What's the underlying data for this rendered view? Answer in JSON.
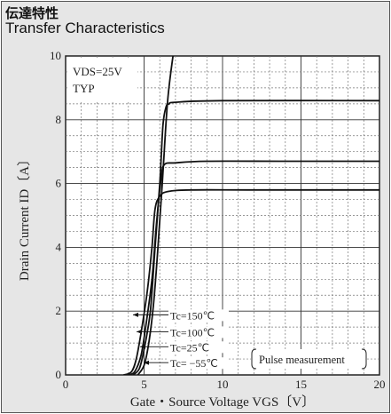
{
  "header": {
    "title_jp": "伝達特性",
    "title_en": "Transfer Characteristics"
  },
  "chart_data": {
    "type": "line",
    "title": "Transfer Characteristics",
    "xlabel": "Gate・Source Voltage  VGS〔V〕",
    "ylabel": "Drain Current  ID〔A〕",
    "xlim": [
      0,
      20
    ],
    "ylim": [
      0,
      10
    ],
    "x_ticks": [
      0,
      5,
      10,
      15,
      20
    ],
    "y_ticks": [
      0,
      2,
      4,
      6,
      8,
      10
    ],
    "grid": true,
    "conditions": [
      "VDS=25V",
      "TYP"
    ],
    "note": "Pulse measurement",
    "series": [
      {
        "name": "Tc=150℃",
        "x": [
          3.7,
          4.2,
          4.5,
          4.8,
          5.2,
          5.5,
          5.7,
          6.0,
          6.5,
          8,
          12,
          20
        ],
        "y": [
          0,
          0.1,
          0.5,
          1.3,
          2.6,
          4.0,
          5.2,
          5.6,
          5.75,
          5.8,
          5.8,
          5.8
        ]
      },
      {
        "name": "Tc=100℃",
        "x": [
          4.0,
          4.4,
          4.8,
          5.1,
          5.5,
          5.8,
          6.1,
          6.3,
          7,
          9,
          14,
          20
        ],
        "y": [
          0,
          0.1,
          0.6,
          1.5,
          3.0,
          4.8,
          6.2,
          6.6,
          6.65,
          6.7,
          6.7,
          6.7
        ]
      },
      {
        "name": "Tc=25℃",
        "x": [
          4.3,
          4.7,
          5.0,
          5.4,
          5.7,
          6.0,
          6.2,
          6.4,
          6.6,
          7,
          10,
          20
        ],
        "y": [
          0,
          0.2,
          0.8,
          2.0,
          4.0,
          6.0,
          7.8,
          8.4,
          8.5,
          8.55,
          8.6,
          8.6
        ]
      },
      {
        "name": "Tc= −55℃",
        "x": [
          4.6,
          5.0,
          5.3,
          5.6,
          5.9,
          6.2,
          6.5,
          6.9
        ],
        "y": [
          0,
          0.3,
          1.0,
          2.2,
          4.1,
          6.3,
          8.6,
          10.2
        ]
      }
    ]
  }
}
